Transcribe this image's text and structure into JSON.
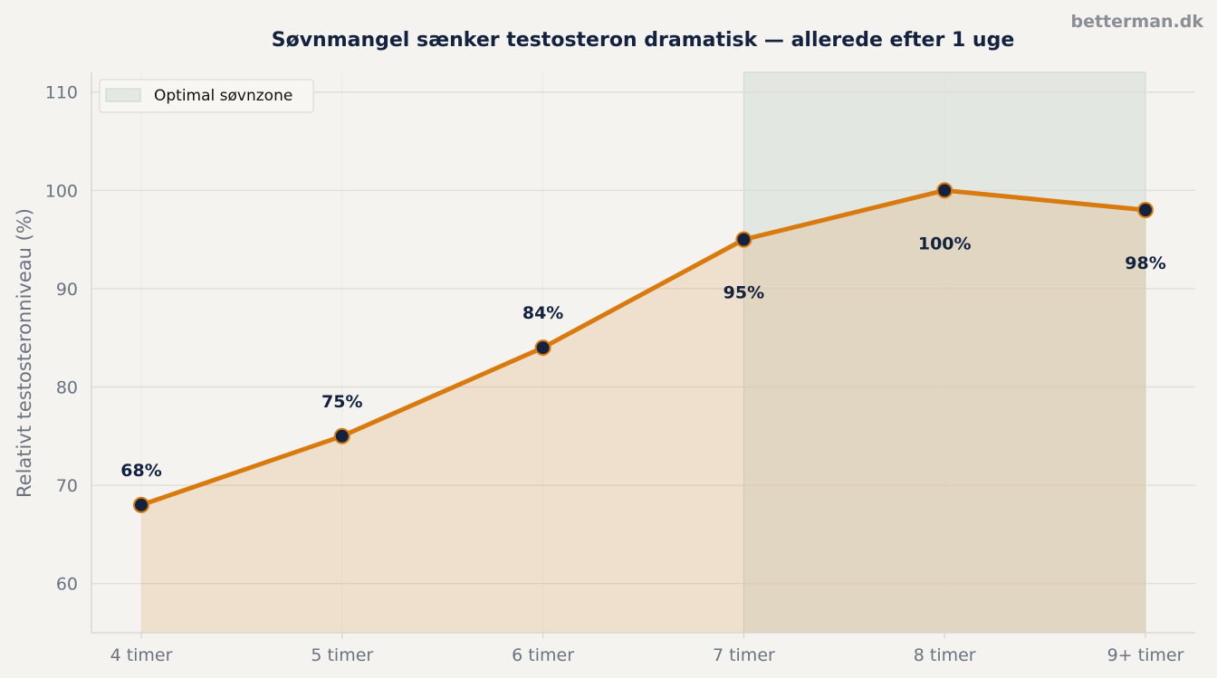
{
  "watermark": "betterman.dk",
  "chart_data": {
    "type": "line",
    "title": "Søvnmangel sænker testosteron dramatisk — allerede efter 1 uge",
    "xlabel": "",
    "ylabel": "Relativt testosteronniveau (%)",
    "categories": [
      "4 timer",
      "5 timer",
      "6 timer",
      "7 timer",
      "8 timer",
      "9+ timer"
    ],
    "series": [
      {
        "values": [
          68,
          75,
          84,
          95,
          100,
          98
        ]
      }
    ],
    "data_labels": [
      "68%",
      "75%",
      "84%",
      "95%",
      "100%",
      "98%"
    ],
    "ylim": [
      55,
      112
    ],
    "yticks": [
      60,
      70,
      80,
      90,
      100,
      110
    ],
    "grid": true,
    "area_fill": true,
    "highlight_band": {
      "label": "Optimal søvnzone",
      "from_category": "7 timer",
      "to_category": "9+ timer"
    },
    "legend": {
      "placement": "top-left",
      "entries": [
        "Optimal søvnzone"
      ]
    },
    "colors": {
      "line": "#d97a0f",
      "marker_fill": "#13233f",
      "marker_edge": "#d97a0f",
      "area": "#f0dcc0",
      "band": "#c9d6c9",
      "grid": "#dedbd2",
      "axis": "#d6d3cc",
      "background": "#f4f3f0"
    }
  }
}
